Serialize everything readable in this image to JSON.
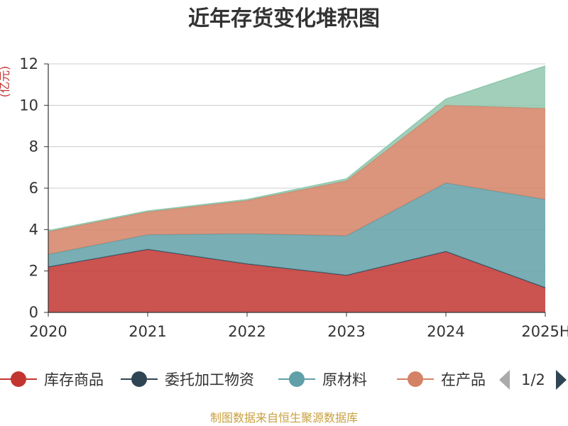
{
  "chart_data": {
    "type": "area",
    "title": "近年存货变化堆积图",
    "ylabel": "(亿元)",
    "categories": [
      "2020",
      "2021",
      "2022",
      "2023",
      "2024",
      "2025H"
    ],
    "ylim": [
      0,
      12
    ],
    "yticks": [
      0,
      2,
      4,
      6,
      8,
      10,
      12
    ],
    "grid": true,
    "stacked": true,
    "legend_position": "bottom",
    "series": [
      {
        "name": "库存商品",
        "color": "#c23531",
        "values": [
          2.2,
          3.05,
          2.35,
          1.8,
          2.95,
          1.2
        ]
      },
      {
        "name": "委托加工物资",
        "color": "#2f4554",
        "values": [
          0,
          0,
          0,
          0,
          0,
          0
        ]
      },
      {
        "name": "原材料",
        "color": "#61a0a8",
        "values": [
          0.6,
          0.7,
          1.45,
          1.9,
          3.3,
          4.25
        ]
      },
      {
        "name": "在产品",
        "color": "#d48265",
        "values": [
          1.1,
          1.1,
          1.6,
          2.65,
          3.75,
          4.4
        ]
      },
      {
        "name": "",
        "color": "#91c7ae",
        "values": [
          0.05,
          0.05,
          0.05,
          0.1,
          0.3,
          2.05
        ]
      }
    ],
    "legend_page": "1/2",
    "source": "制图数据来自恒生聚源数据库"
  }
}
